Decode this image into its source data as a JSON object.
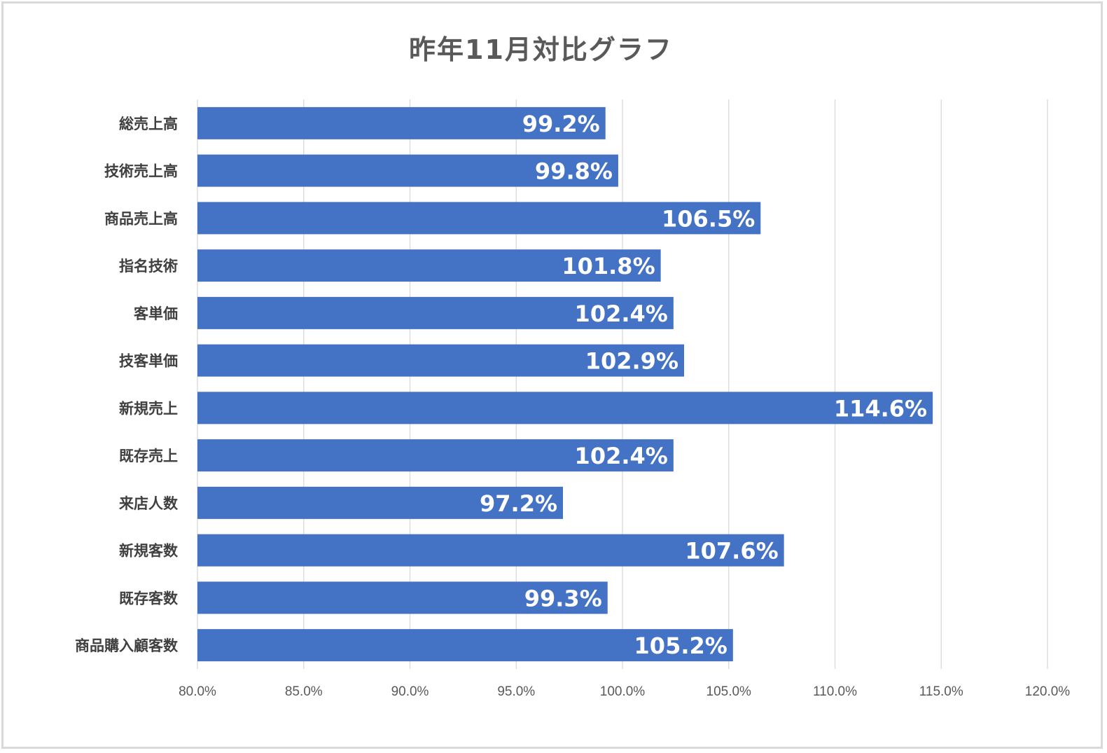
{
  "chart_data": {
    "type": "bar",
    "orientation": "horizontal",
    "title": "昨年11月対比グラフ",
    "xlabel": "",
    "ylabel": "",
    "categories": [
      "総売上高",
      "技術売上高",
      "商品売上高",
      "指名技術",
      "客単価",
      "技客単価",
      "新規売上",
      "既存売上",
      "来店人数",
      "新規客数",
      "既存客数",
      "商品購入顧客数"
    ],
    "values": [
      99.2,
      99.8,
      106.5,
      101.8,
      102.4,
      102.9,
      114.6,
      102.4,
      97.2,
      107.6,
      99.3,
      105.2
    ],
    "data_labels": [
      "99.2%",
      "99.8%",
      "106.5%",
      "101.8%",
      "102.4%",
      "102.9%",
      "114.6%",
      "102.4%",
      "97.2%",
      "107.6%",
      "99.3%",
      "105.2%"
    ],
    "xlim": [
      80,
      120
    ],
    "x_ticks": [
      80,
      85,
      90,
      95,
      100,
      105,
      110,
      115,
      120
    ],
    "x_tick_labels": [
      "80.0%",
      "85.0%",
      "90.0%",
      "95.0%",
      "100.0%",
      "105.0%",
      "110.0%",
      "115.0%",
      "120.0%"
    ],
    "grid": true,
    "legend": "none",
    "bar_color": "#4472c4",
    "grid_color": "#d9d9d9",
    "data_label_color": "#ffffff"
  }
}
